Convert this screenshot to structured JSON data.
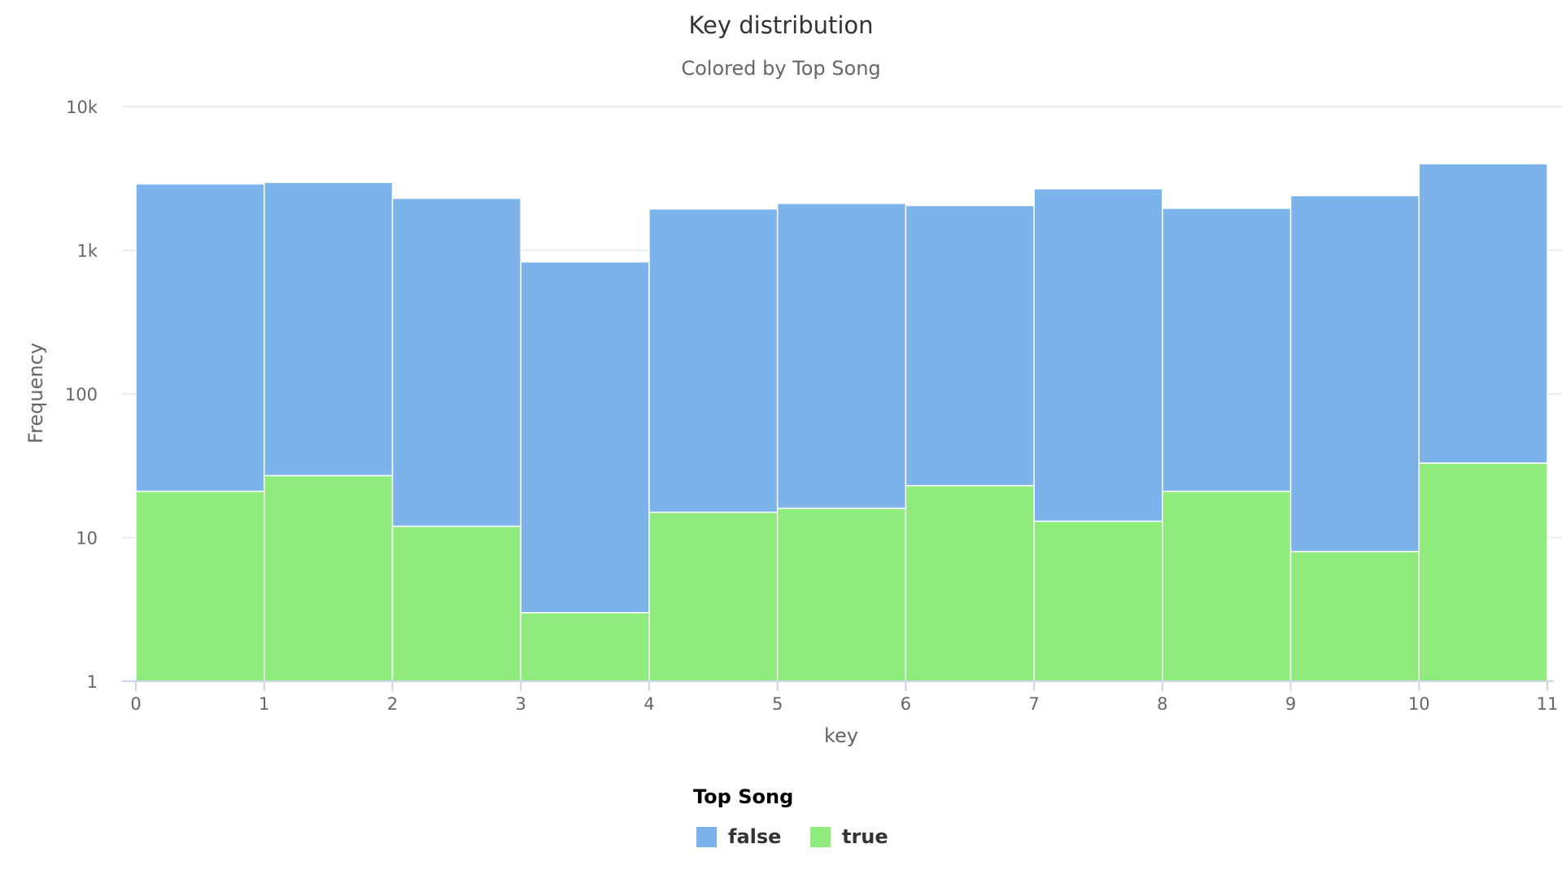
{
  "chart_data": {
    "type": "bar",
    "title": "Key distribution",
    "subtitle": "Colored by Top Song",
    "xlabel": "key",
    "ylabel": "Frequency",
    "yscale": "log",
    "ylim": [
      1,
      10000
    ],
    "y_ticks": [
      {
        "value": 1,
        "label": "1"
      },
      {
        "value": 10,
        "label": "10"
      },
      {
        "value": 100,
        "label": "100"
      },
      {
        "value": 1000,
        "label": "1k"
      },
      {
        "value": 10000,
        "label": "10k"
      }
    ],
    "x_ticks": [
      "0",
      "1",
      "2",
      "3",
      "4",
      "5",
      "6",
      "7",
      "8",
      "9",
      "10",
      "11"
    ],
    "bins": [
      [
        0,
        1
      ],
      [
        1,
        2
      ],
      [
        2,
        3
      ],
      [
        3,
        4
      ],
      [
        4,
        5
      ],
      [
        5,
        6
      ],
      [
        6,
        7
      ],
      [
        7,
        8
      ],
      [
        8,
        9
      ],
      [
        9,
        10
      ],
      [
        10,
        11
      ]
    ],
    "stacked": true,
    "grid": true,
    "legend_title": "Top Song",
    "legend_position": "bottom-center",
    "series": [
      {
        "name": "false",
        "color": "#7cb3ea",
        "values": [
          2900,
          2970,
          2300,
          830,
          1940,
          2120,
          2050,
          2680,
          1960,
          2400,
          4000
        ]
      },
      {
        "name": "true",
        "color": "#90eb7d",
        "values": [
          21,
          27,
          12,
          3,
          15,
          16,
          23,
          13,
          21,
          8,
          33
        ]
      }
    ]
  }
}
